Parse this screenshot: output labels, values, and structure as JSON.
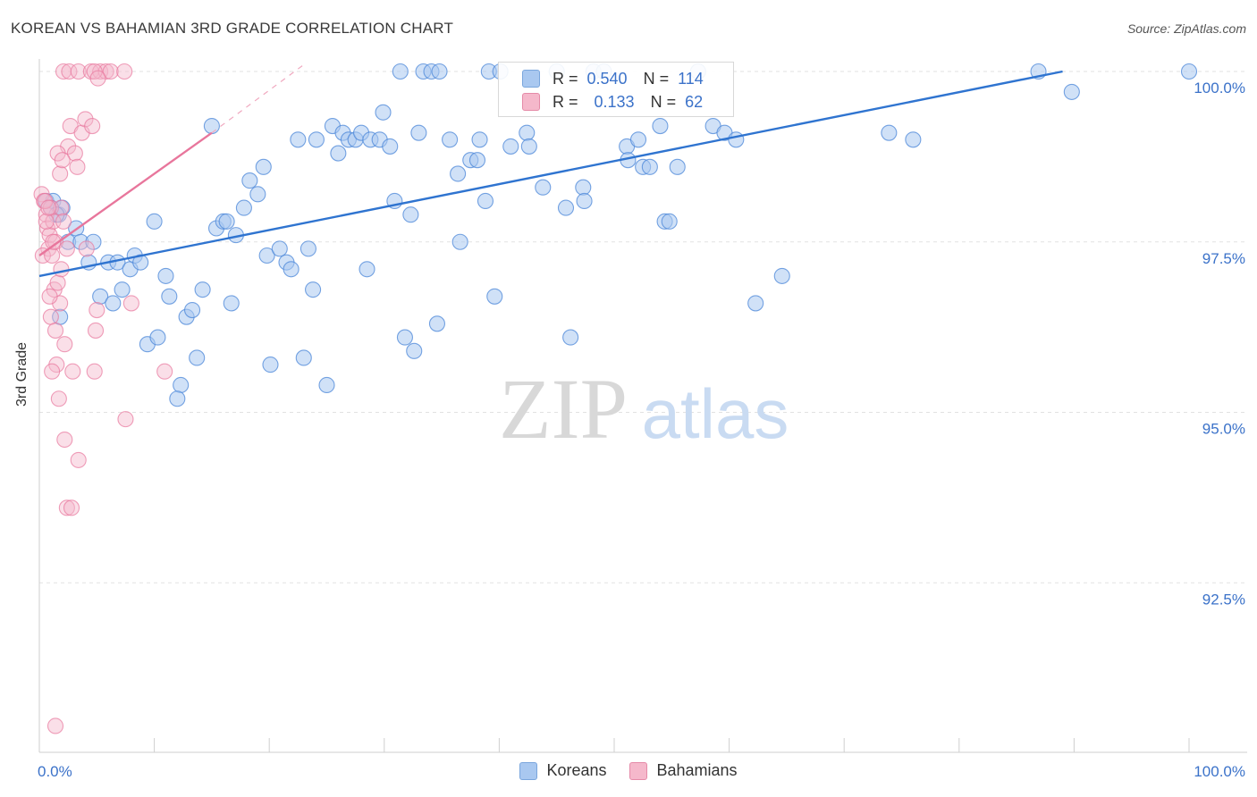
{
  "header": {
    "title": "KOREAN VS BAHAMIAN 3RD GRADE CORRELATION CHART",
    "source": "Source: ZipAtlas.com"
  },
  "watermark": {
    "zip": "ZIP",
    "atlas": "atlas"
  },
  "legend": {
    "rows": [
      {
        "r_label": "R =",
        "r_value": "0.540",
        "n_label": "N =",
        "n_value": "114",
        "color": "#a9c8f0"
      },
      {
        "r_label": "R =",
        "r_value": "0.133",
        "n_label": "N =",
        "n_value": "62",
        "color": "#f5b8cb"
      }
    ]
  },
  "bottom_legend": {
    "koreans": "Koreans",
    "bahamians": "Bahamians"
  },
  "chart_data": {
    "type": "scatter",
    "title": "KOREAN VS BAHAMIAN 3RD GRADE CORRELATION CHART",
    "xlabel": "",
    "ylabel": "3rd Grade",
    "xlim": [
      0,
      100
    ],
    "ylim": [
      90.0,
      100.2
    ],
    "x_tick_labels": [
      "0.0%",
      "100.0%"
    ],
    "y_ticks": [
      92.5,
      95.0,
      97.5,
      100.0
    ],
    "y_tick_labels": [
      "92.5%",
      "95.0%",
      "97.5%",
      "100.0%"
    ],
    "grid": true,
    "legend_position": "top-center",
    "colors": {
      "koreans": "#4a86d8",
      "koreans_fill": "#a9c8f0",
      "bahamians": "#e8769c",
      "bahamians_fill": "#f5b8cb"
    },
    "series": [
      {
        "name": "Koreans",
        "trend": {
          "x": [
            0,
            89
          ],
          "y": [
            97.0,
            100.0
          ]
        },
        "points": [
          [
            0.6,
            98.1
          ],
          [
            1.2,
            98.1
          ],
          [
            1.7,
            97.9
          ],
          [
            2.0,
            98.0
          ],
          [
            2.5,
            97.5
          ],
          [
            3.2,
            97.7
          ],
          [
            3.6,
            97.5
          ],
          [
            4.7,
            97.5
          ],
          [
            1.8,
            96.4
          ],
          [
            4.3,
            97.2
          ],
          [
            5.3,
            96.7
          ],
          [
            6.0,
            97.2
          ],
          [
            6.4,
            96.6
          ],
          [
            6.8,
            97.2
          ],
          [
            7.2,
            96.8
          ],
          [
            7.9,
            97.1
          ],
          [
            8.3,
            97.3
          ],
          [
            8.8,
            97.2
          ],
          [
            9.4,
            96.0
          ],
          [
            10.3,
            96.1
          ],
          [
            10.0,
            97.8
          ],
          [
            11.0,
            97.0
          ],
          [
            11.3,
            96.7
          ],
          [
            12.3,
            95.4
          ],
          [
            12.0,
            95.2
          ],
          [
            12.8,
            96.4
          ],
          [
            13.3,
            96.5
          ],
          [
            13.7,
            95.8
          ],
          [
            14.2,
            96.8
          ],
          [
            15.0,
            99.2
          ],
          [
            15.4,
            97.7
          ],
          [
            16.0,
            97.8
          ],
          [
            16.3,
            97.8
          ],
          [
            16.7,
            96.6
          ],
          [
            17.1,
            97.6
          ],
          [
            17.8,
            98.0
          ],
          [
            18.3,
            98.4
          ],
          [
            19.0,
            98.2
          ],
          [
            19.5,
            98.6
          ],
          [
            19.8,
            97.3
          ],
          [
            20.1,
            95.7
          ],
          [
            20.9,
            97.4
          ],
          [
            21.5,
            97.2
          ],
          [
            21.9,
            97.1
          ],
          [
            22.5,
            99.0
          ],
          [
            23.0,
            95.8
          ],
          [
            23.4,
            97.4
          ],
          [
            23.8,
            96.8
          ],
          [
            24.1,
            99.0
          ],
          [
            25.0,
            95.4
          ],
          [
            25.5,
            99.2
          ],
          [
            26.0,
            98.8
          ],
          [
            26.4,
            99.1
          ],
          [
            26.9,
            99.0
          ],
          [
            27.5,
            99.0
          ],
          [
            28.0,
            99.1
          ],
          [
            28.5,
            97.1
          ],
          [
            28.8,
            99.0
          ],
          [
            29.6,
            99.0
          ],
          [
            29.9,
            99.4
          ],
          [
            30.5,
            98.9
          ],
          [
            30.9,
            98.1
          ],
          [
            31.4,
            100.0
          ],
          [
            31.8,
            96.1
          ],
          [
            32.3,
            97.9
          ],
          [
            32.6,
            95.9
          ],
          [
            33.0,
            99.1
          ],
          [
            33.4,
            100.0
          ],
          [
            34.1,
            100.0
          ],
          [
            34.6,
            96.3
          ],
          [
            34.8,
            100.0
          ],
          [
            35.7,
            99.0
          ],
          [
            36.4,
            98.5
          ],
          [
            36.6,
            97.5
          ],
          [
            37.5,
            98.7
          ],
          [
            38.1,
            98.7
          ],
          [
            38.3,
            99.0
          ],
          [
            38.8,
            98.1
          ],
          [
            39.1,
            100.0
          ],
          [
            39.6,
            96.7
          ],
          [
            40.1,
            100.0
          ],
          [
            41.0,
            98.9
          ],
          [
            42.4,
            99.1
          ],
          [
            42.6,
            98.9
          ],
          [
            43.8,
            98.3
          ],
          [
            45.0,
            100.0
          ],
          [
            45.8,
            98.0
          ],
          [
            46.2,
            96.1
          ],
          [
            47.3,
            98.3
          ],
          [
            47.4,
            98.1
          ],
          [
            48.2,
            100.0
          ],
          [
            49.1,
            100.0
          ],
          [
            51.1,
            98.9
          ],
          [
            51.2,
            98.7
          ],
          [
            52.1,
            99.0
          ],
          [
            52.5,
            98.6
          ],
          [
            53.1,
            98.6
          ],
          [
            54.0,
            99.2
          ],
          [
            54.4,
            97.8
          ],
          [
            54.8,
            97.8
          ],
          [
            55.5,
            98.6
          ],
          [
            57.3,
            100.0
          ],
          [
            58.6,
            99.2
          ],
          [
            59.6,
            99.1
          ],
          [
            60.6,
            99.0
          ],
          [
            62.3,
            96.6
          ],
          [
            64.6,
            97.0
          ],
          [
            73.9,
            99.1
          ],
          [
            76.0,
            99.0
          ],
          [
            86.9,
            100.0
          ],
          [
            89.8,
            99.7
          ],
          [
            100.0,
            100.0
          ],
          [
            1.0,
            98.0
          ],
          [
            1.5,
            97.9
          ]
        ]
      },
      {
        "name": "Bahamians",
        "trend": {
          "x": [
            0,
            15
          ],
          "y": [
            97.3,
            99.1
          ],
          "dashed_to": {
            "x": 23,
            "y": 100.1
          }
        },
        "points": [
          [
            0.2,
            98.2
          ],
          [
            0.4,
            98.1
          ],
          [
            0.6,
            97.9
          ],
          [
            0.7,
            97.7
          ],
          [
            0.9,
            97.6
          ],
          [
            1.0,
            98.0
          ],
          [
            0.8,
            97.4
          ],
          [
            1.2,
            97.8
          ],
          [
            0.3,
            97.3
          ],
          [
            0.5,
            98.1
          ],
          [
            1.1,
            97.3
          ],
          [
            1.3,
            96.8
          ],
          [
            1.4,
            97.5
          ],
          [
            1.6,
            96.9
          ],
          [
            1.8,
            96.6
          ],
          [
            1.5,
            95.7
          ],
          [
            1.1,
            95.6
          ],
          [
            1.7,
            95.2
          ],
          [
            2.2,
            94.6
          ],
          [
            2.4,
            93.6
          ],
          [
            2.8,
            93.6
          ],
          [
            3.4,
            94.3
          ],
          [
            1.4,
            90.4
          ],
          [
            2.1,
            100.0
          ],
          [
            2.6,
            100.0
          ],
          [
            3.4,
            100.0
          ],
          [
            4.5,
            100.0
          ],
          [
            5.3,
            100.0
          ],
          [
            5.8,
            100.0
          ],
          [
            6.2,
            100.0
          ],
          [
            7.4,
            100.0
          ],
          [
            4.8,
            100.0
          ],
          [
            5.1,
            99.9
          ],
          [
            2.7,
            99.2
          ],
          [
            3.7,
            99.1
          ],
          [
            4.0,
            99.3
          ],
          [
            4.6,
            99.2
          ],
          [
            2.5,
            98.9
          ],
          [
            3.1,
            98.8
          ],
          [
            3.3,
            98.6
          ],
          [
            1.8,
            98.5
          ],
          [
            1.6,
            98.8
          ],
          [
            2.0,
            98.7
          ],
          [
            1.9,
            98.0
          ],
          [
            2.1,
            97.8
          ],
          [
            1.2,
            97.5
          ],
          [
            2.4,
            97.4
          ],
          [
            4.1,
            97.4
          ],
          [
            5.0,
            96.5
          ],
          [
            1.0,
            96.4
          ],
          [
            1.4,
            96.2
          ],
          [
            2.2,
            96.0
          ],
          [
            2.9,
            95.6
          ],
          [
            4.8,
            95.6
          ],
          [
            4.9,
            96.2
          ],
          [
            8.0,
            96.6
          ],
          [
            10.9,
            95.6
          ],
          [
            7.5,
            94.9
          ],
          [
            0.9,
            96.7
          ],
          [
            1.9,
            97.1
          ],
          [
            0.6,
            97.8
          ],
          [
            0.8,
            98.0
          ]
        ]
      }
    ]
  }
}
